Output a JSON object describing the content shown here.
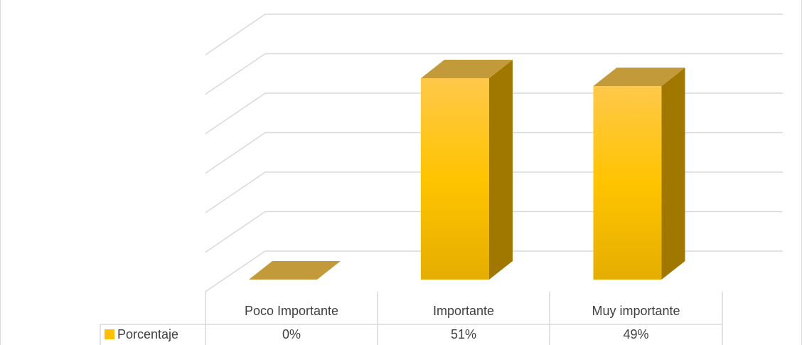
{
  "chart_data": {
    "type": "bar",
    "style": "3d-column-with-data-table",
    "categories": [
      "Poco Importante",
      "Importante",
      "Muy importante"
    ],
    "series": [
      {
        "name": "Porcentaje",
        "values": [
          0,
          51,
          49
        ],
        "labels": [
          "0%",
          "51%",
          "49%"
        ]
      }
    ],
    "ylim": [
      0,
      60
    ],
    "y_tick_labels_shown": false,
    "grid": true,
    "legend": "data-table-left"
  },
  "colors": {
    "bar_front_top": "#ffc84a",
    "bar_front_mid": "#ffc400",
    "bar_front_bottom": "#e5ae00",
    "bar_side": "#a07800",
    "bar_top": "#c39a3a",
    "grid": "#d9d9d9",
    "text": "#404040",
    "legend_key": "#ffc000"
  }
}
